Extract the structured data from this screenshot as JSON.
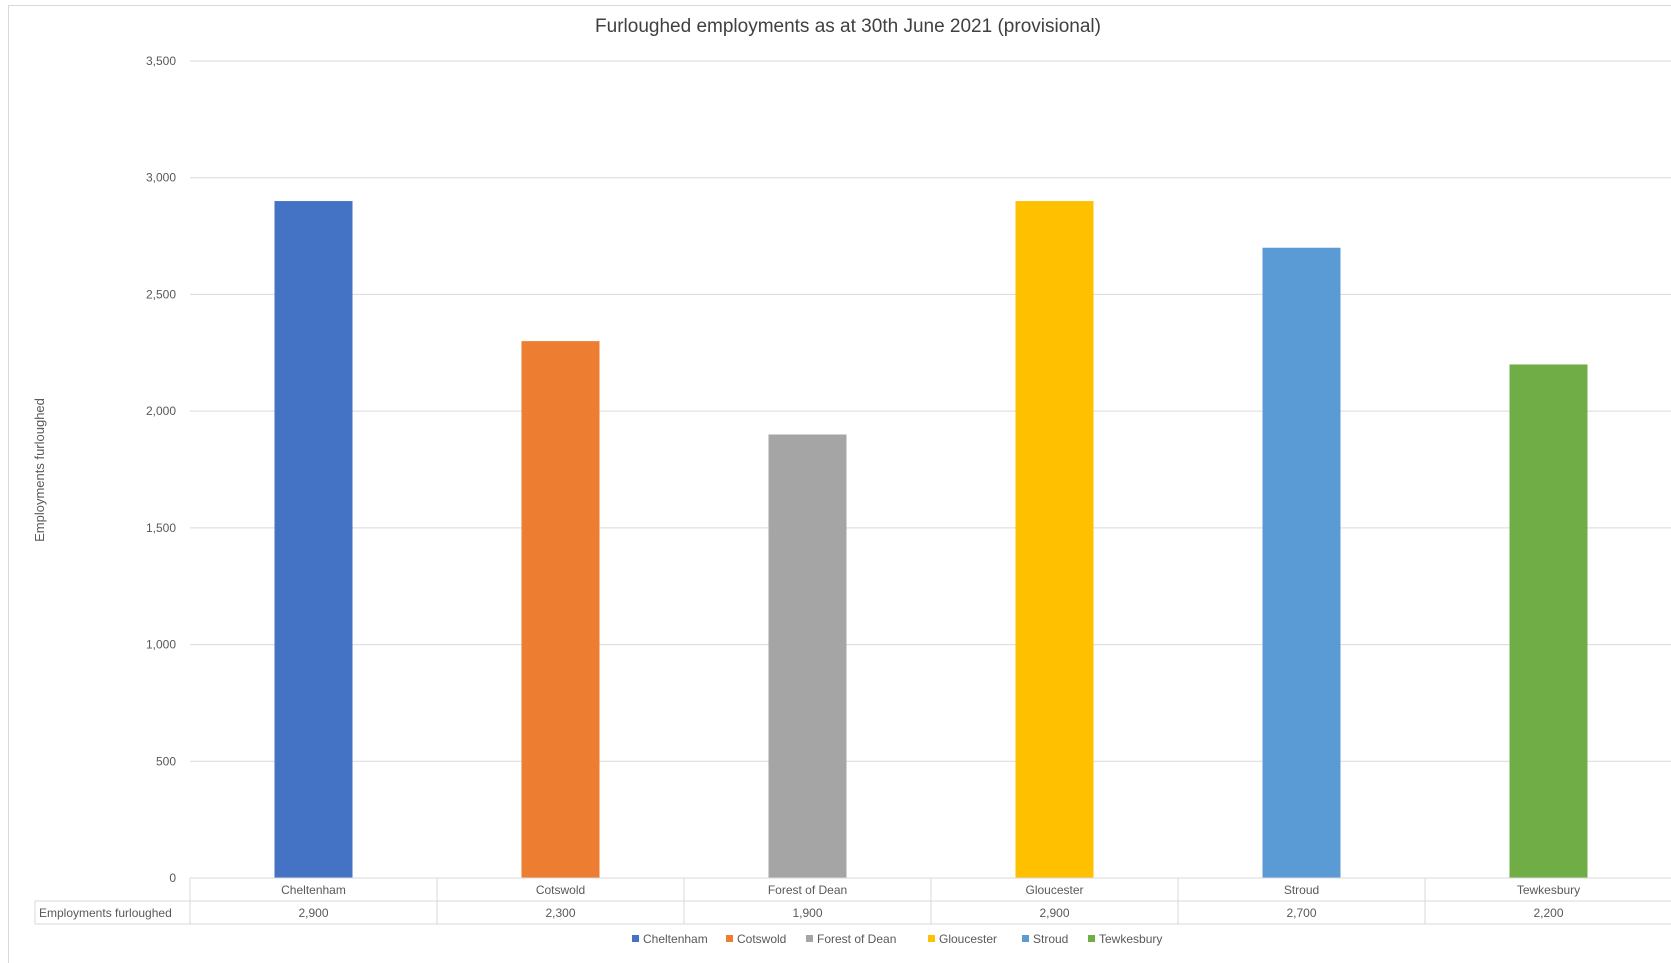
{
  "chart_data": {
    "type": "bar",
    "title": "Furloughed employments as at 30th June 2021 (provisional)",
    "xlabel": "",
    "ylabel": "Employments furloughed",
    "categories": [
      "Cheltenham",
      "Cotswold",
      "Forest of Dean",
      "Gloucester",
      "Stroud",
      "Tewkesbury"
    ],
    "values": [
      2900,
      2300,
      1900,
      2900,
      2700,
      2200
    ],
    "ylim": [
      0,
      3500
    ],
    "yticks": [
      0,
      500,
      1000,
      1500,
      2000,
      2500,
      3000,
      3500
    ],
    "ytick_labels": [
      "0",
      "500",
      "1,000",
      "1,500",
      "2,000",
      "2,500",
      "3,000",
      "3,500"
    ],
    "colors": [
      "#4472C4",
      "#ED7D31",
      "#A5A5A5",
      "#FFC000",
      "#5B9BD5",
      "#70AD47"
    ],
    "grid": true,
    "legend_position": "bottom",
    "legend": [
      "Cheltenham",
      "Cotswold",
      "Forest of Dean",
      "Gloucester",
      "Stroud",
      "Tewkesbury"
    ],
    "data_table": {
      "row_label": "Employments furloughed",
      "values": [
        "2,900",
        "2,300",
        "1,900",
        "2,900",
        "2,700",
        "2,200"
      ]
    }
  }
}
